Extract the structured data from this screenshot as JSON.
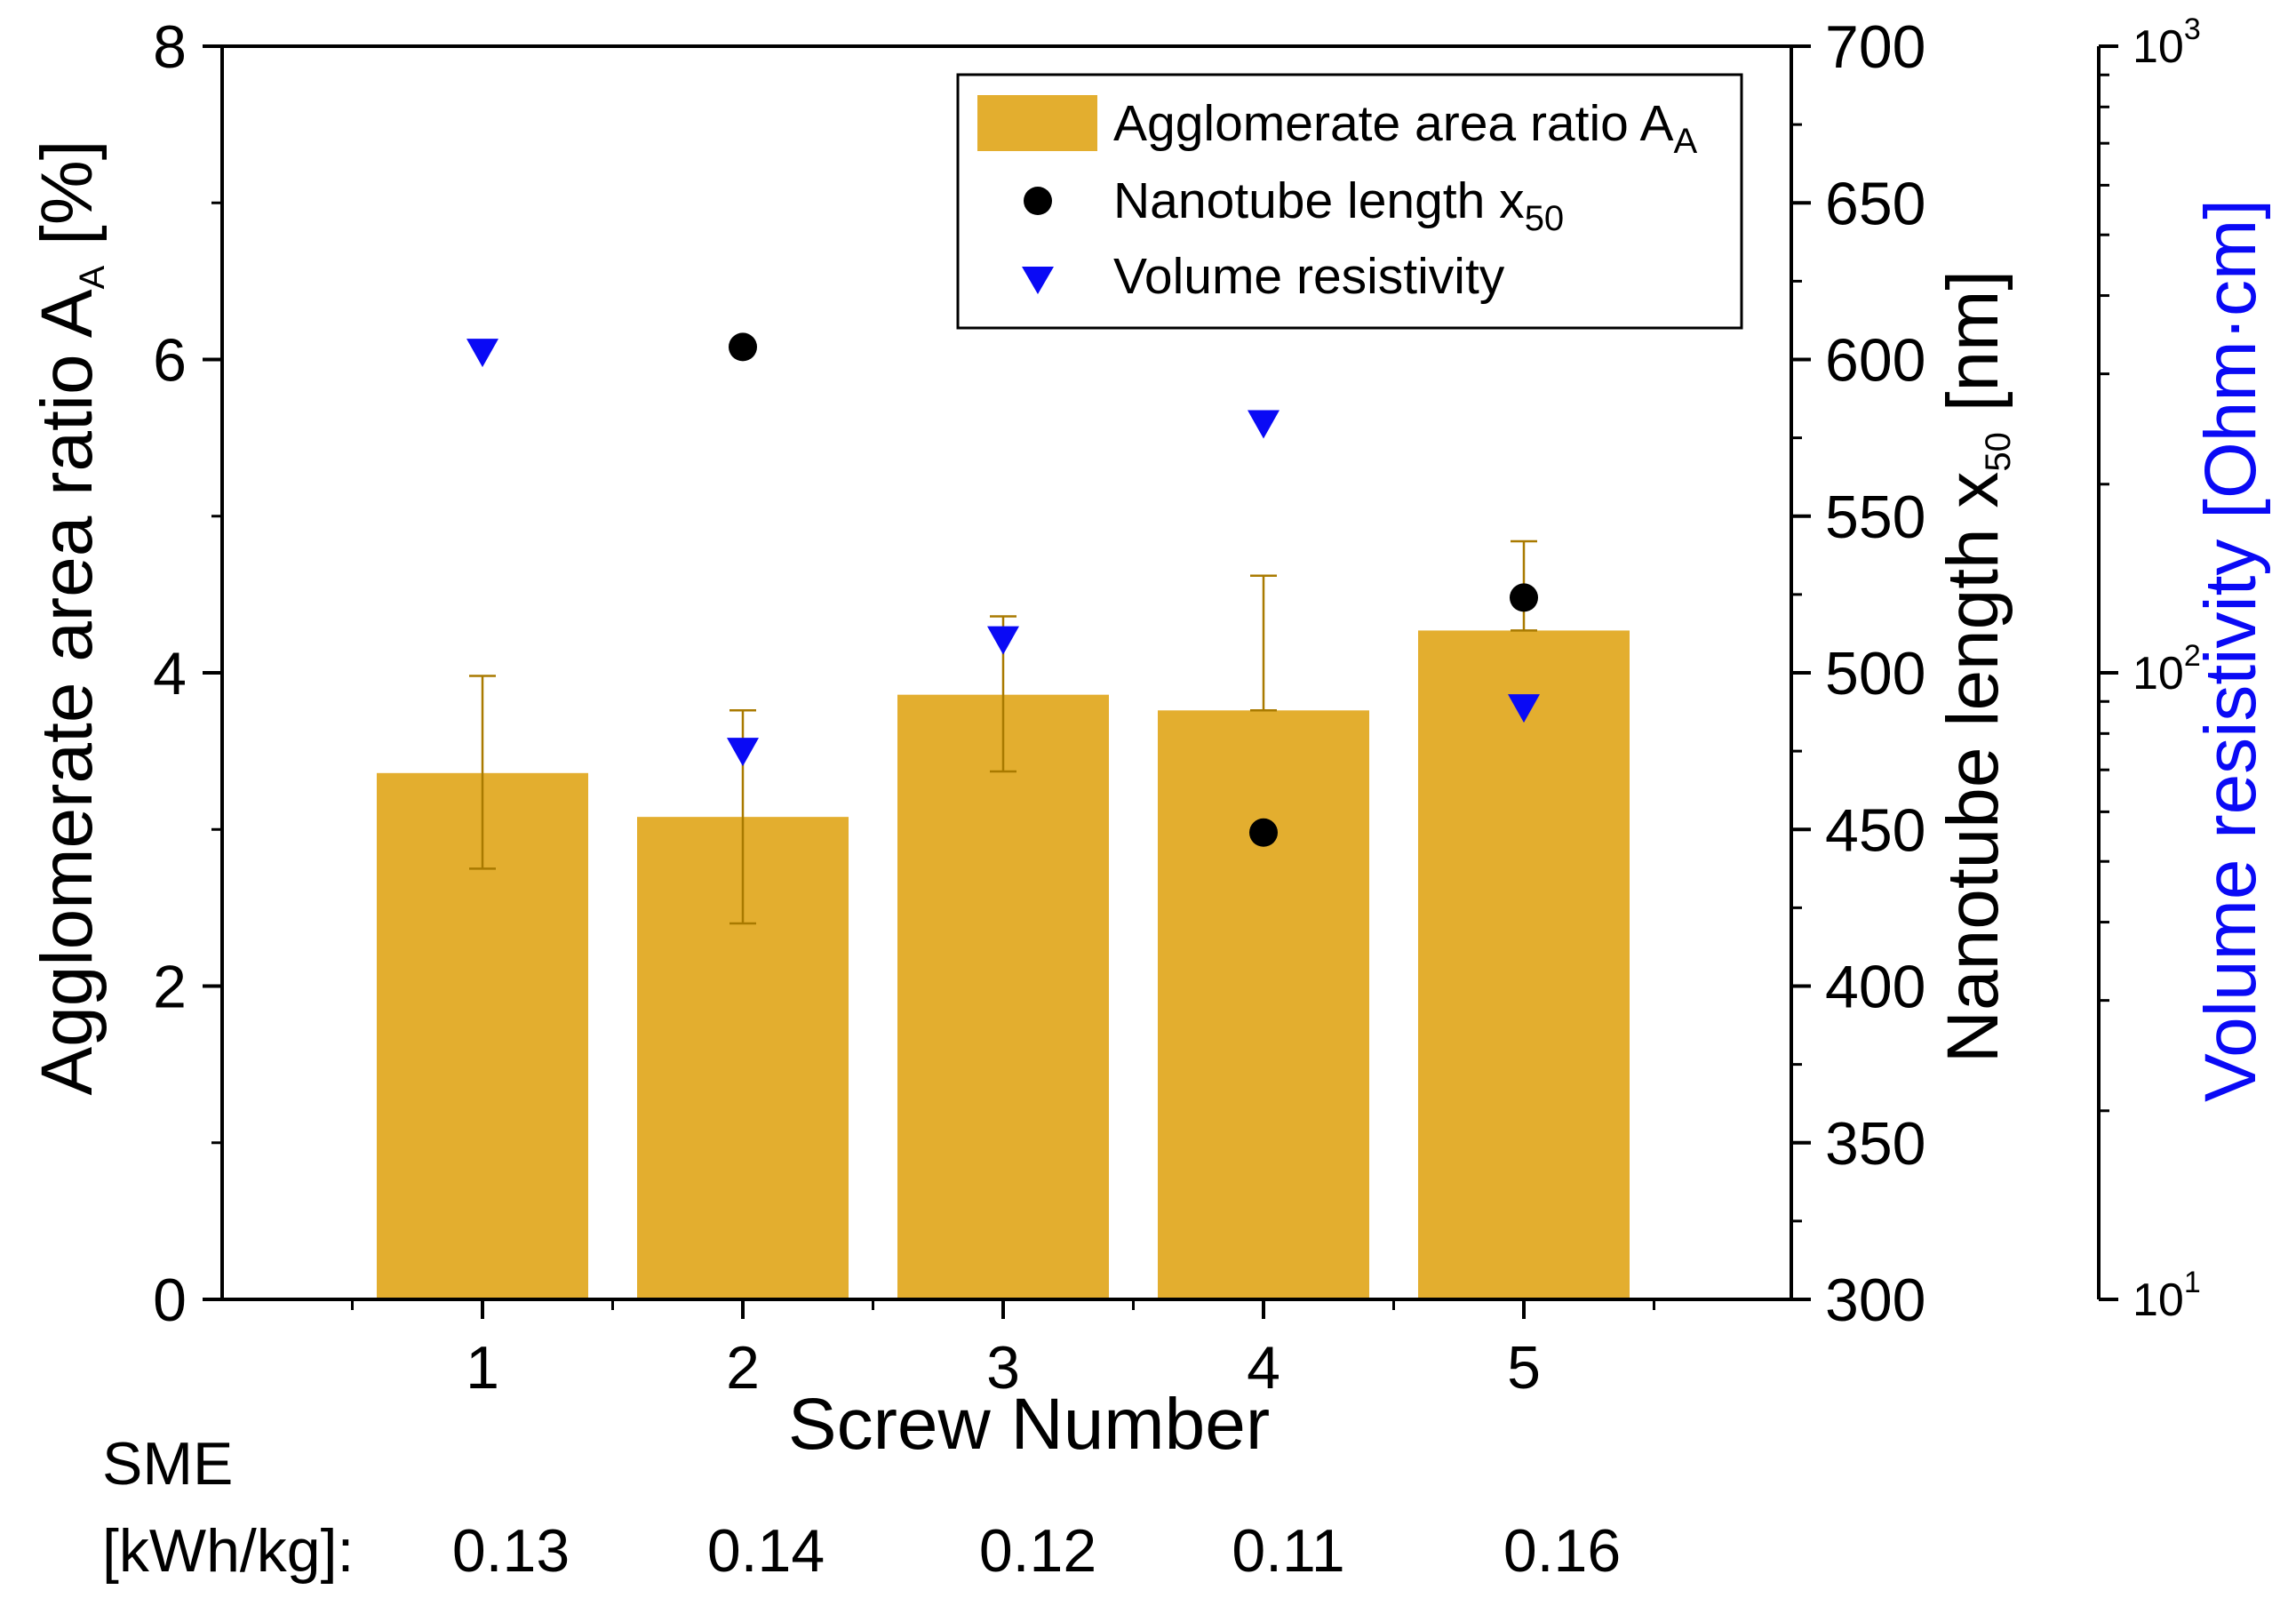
{
  "chart_data": {
    "type": "bar",
    "xlabel": "Screw Number",
    "categories": [
      "1",
      "2",
      "3",
      "4",
      "5"
    ],
    "colors": {
      "bar": "#E3AE2F",
      "error_bar": "#A97A00",
      "nanotube": "#000000",
      "resistivity": "#0A0AF5",
      "axis": "#000000"
    },
    "axes": {
      "left": {
        "title_main": "Agglomerate area ratio A",
        "title_sub": "A",
        "title_unit": " [%]",
        "ylim": [
          0,
          8
        ],
        "ticks": [
          0,
          2,
          4,
          6,
          8
        ],
        "tick_labels": [
          "0",
          "2",
          "4",
          "6",
          "8"
        ]
      },
      "right1": {
        "title_main": "Nanotube length x",
        "title_sub": "50",
        "title_unit": " [nm]",
        "ylim": [
          300,
          700
        ],
        "ticks": [
          300,
          350,
          400,
          450,
          500,
          550,
          600,
          650,
          700
        ],
        "tick_labels": [
          "300",
          "350",
          "400",
          "450",
          "500",
          "550",
          "600",
          "650",
          "700"
        ]
      },
      "right2": {
        "title": "Volume resistivity [Ohm·cm]",
        "scale": "log",
        "ylim": [
          10,
          1000
        ],
        "ticks": [
          10,
          100,
          1000
        ],
        "tick_base": "10",
        "tick_exponents": [
          "1",
          "2",
          "3"
        ]
      }
    },
    "series": [
      {
        "name": "Agglomerate area ratio A_A",
        "legend_main": "Agglomerate area ratio A",
        "legend_sub": "A",
        "type": "bar",
        "axis": "left",
        "values": [
          3.36,
          3.08,
          3.86,
          3.76,
          4.27
        ],
        "err_upper": [
          3.98,
          3.76,
          4.36,
          4.62,
          4.84
        ],
        "err_lower": [
          2.75,
          2.4,
          3.37,
          3.76,
          4.27
        ]
      },
      {
        "name": "Nanotube length x_50",
        "legend_main": "Nanotube length x",
        "legend_sub": "50",
        "type": "scatter",
        "marker": "circle",
        "axis": "right1",
        "x": [
          2,
          4,
          5
        ],
        "values": [
          604,
          449,
          524
        ]
      },
      {
        "name": "Volume resistivity",
        "legend_main": "Volume resistivity",
        "legend_sub": "",
        "type": "scatter",
        "marker": "triangle-down",
        "axis": "right2",
        "x": [
          1,
          2,
          3,
          4,
          5
        ],
        "values": [
          325,
          75,
          113,
          250,
          88
        ]
      }
    ],
    "legend_position": "top-right",
    "sme": {
      "label_line1": "SME",
      "label_line2": "[kWh/kg]:",
      "values": [
        "0.13",
        "0.14",
        "0.12",
        "0.11",
        "0.16"
      ]
    }
  }
}
